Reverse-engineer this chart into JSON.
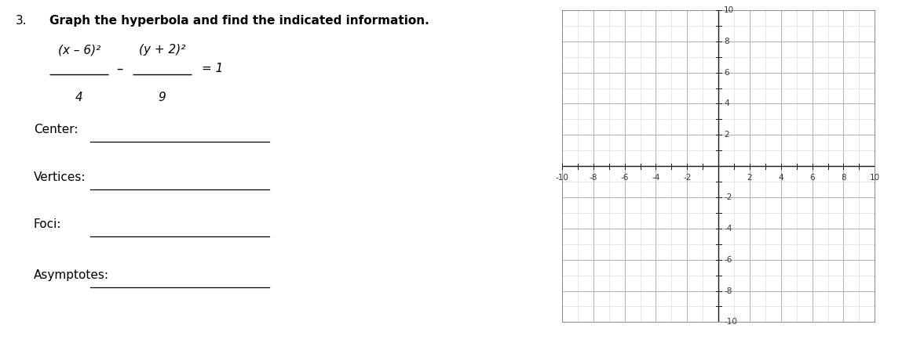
{
  "background_color": "#ffffff",
  "fig_width": 11.77,
  "fig_height": 4.33,
  "left_panel": {
    "problem_number": "3.",
    "title": "Graph the hyperbola and find the indicated information.",
    "font_size_title": 11,
    "font_size_number": 11,
    "font_size_equation": 11,
    "font_size_label": 11,
    "eq_num_left": "(x – 6)²",
    "eq_num_right": "(y + 2)²",
    "eq_den_left": "4",
    "eq_den_right": "9",
    "labels": [
      "Center:",
      "Vertices:",
      "Foci:",
      "Asymptotes:"
    ]
  },
  "right_panel": {
    "x_min": -10,
    "x_max": 10,
    "y_min": -10,
    "y_max": 10,
    "grid_minor_color": "#d3d3d3",
    "grid_major_color": "#b0b0b0",
    "axis_color": "#1a1a1a",
    "axis_linewidth": 1.0,
    "spine_color": "#888888",
    "tick_label_fontsize": 7.5,
    "tick_label_color": "#333333"
  }
}
